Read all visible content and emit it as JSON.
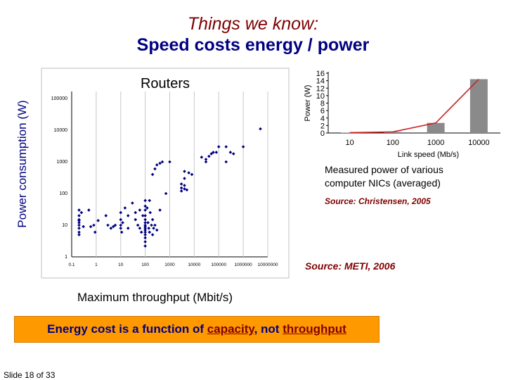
{
  "slide": {
    "title_line1": "Things we know:",
    "title_line2": "Speed costs energy / power",
    "y_axis_label": "Power consumption (W)",
    "x_axis_label": "Maximum throughput (Mbit/s)",
    "nic_note": "Measured power of various computer NICs (averaged)",
    "nic_source": "Source: Christensen, 2005",
    "router_source": "Source: METI, 2006",
    "banner_prefix": "Energy cost is a function of ",
    "banner_capacity": "capacity",
    "banner_middle": ", not ",
    "banner_throughput": "throughput",
    "slide_number": "Slide 18 of 33",
    "colors": {
      "title_italic": "#800000",
      "title_bold": "#000080",
      "banner_bg": "#ff9900",
      "marker": "#000080",
      "nic_line": "#cc2222",
      "nic_bar": "#8a8a8a"
    }
  },
  "chart_data": [
    {
      "type": "scatter",
      "title": "Routers",
      "x_scale": "log",
      "y_scale": "log",
      "x_ticks": [
        "0.1",
        "1",
        "10",
        "100",
        "1000",
        "10000",
        "100000",
        "1000000",
        "10000000"
      ],
      "y_ticks": [
        "1",
        "10",
        "100",
        "1000",
        "10000",
        "100000"
      ],
      "xlim": [
        0.1,
        10000000
      ],
      "ylim": [
        1,
        100000
      ],
      "xlabel": "Maximum throughput (Mbit/s)",
      "ylabel": "Power consumption (W)",
      "grid": "vertical",
      "points": [
        [
          0.2,
          30
        ],
        [
          0.2,
          20
        ],
        [
          0.2,
          15
        ],
        [
          0.2,
          12
        ],
        [
          0.2,
          10
        ],
        [
          0.2,
          8
        ],
        [
          0.2,
          6
        ],
        [
          0.2,
          5
        ],
        [
          0.2,
          14
        ],
        [
          0.25,
          25
        ],
        [
          0.3,
          9
        ],
        [
          0.5,
          30
        ],
        [
          0.6,
          9
        ],
        [
          0.8,
          10
        ],
        [
          0.9,
          6
        ],
        [
          1.2,
          14
        ],
        [
          2.5,
          20
        ],
        [
          3,
          10
        ],
        [
          4,
          8
        ],
        [
          5,
          9
        ],
        [
          6,
          10
        ],
        [
          10,
          25
        ],
        [
          10,
          15
        ],
        [
          10,
          10
        ],
        [
          10,
          8
        ],
        [
          11,
          6
        ],
        [
          12,
          12
        ],
        [
          15,
          35
        ],
        [
          20,
          20
        ],
        [
          20,
          8
        ],
        [
          30,
          50
        ],
        [
          40,
          25
        ],
        [
          40,
          15
        ],
        [
          50,
          10
        ],
        [
          60,
          30
        ],
        [
          60,
          8
        ],
        [
          70,
          6
        ],
        [
          80,
          20
        ],
        [
          100,
          60
        ],
        [
          100,
          40
        ],
        [
          100,
          30
        ],
        [
          100,
          20
        ],
        [
          100,
          15
        ],
        [
          100,
          12
        ],
        [
          100,
          10
        ],
        [
          100,
          9
        ],
        [
          100,
          8
        ],
        [
          100,
          7
        ],
        [
          100,
          6
        ],
        [
          100,
          5
        ],
        [
          100,
          4
        ],
        [
          100,
          3
        ],
        [
          100,
          2.2
        ],
        [
          120,
          35
        ],
        [
          130,
          12
        ],
        [
          140,
          8
        ],
        [
          150,
          60
        ],
        [
          150,
          6
        ],
        [
          160,
          25
        ],
        [
          180,
          10
        ],
        [
          200,
          15
        ],
        [
          200,
          5
        ],
        [
          220,
          8
        ],
        [
          250,
          10
        ],
        [
          300,
          7
        ],
        [
          200,
          400
        ],
        [
          250,
          600
        ],
        [
          300,
          800
        ],
        [
          400,
          900
        ],
        [
          500,
          1000
        ],
        [
          1000,
          1000
        ],
        [
          400,
          30
        ],
        [
          700,
          100
        ],
        [
          3000,
          150
        ],
        [
          3000,
          200
        ],
        [
          3000,
          120
        ],
        [
          4000,
          300
        ],
        [
          4000,
          180
        ],
        [
          4000,
          500
        ],
        [
          4000,
          140
        ],
        [
          5000,
          130
        ],
        [
          6000,
          450
        ],
        [
          8000,
          400
        ],
        [
          20000,
          1400
        ],
        [
          30000,
          1000
        ],
        [
          30000,
          1200
        ],
        [
          40000,
          1500
        ],
        [
          50000,
          1800
        ],
        [
          60000,
          2000
        ],
        [
          80000,
          2000
        ],
        [
          100000,
          3000
        ],
        [
          200000,
          3000
        ],
        [
          200000,
          1000
        ],
        [
          300000,
          2000
        ],
        [
          400000,
          1800
        ],
        [
          1000000,
          3000
        ],
        [
          5000000,
          11000
        ]
      ]
    },
    {
      "type": "bar",
      "xlabel": "Link speed (Mb/s)",
      "ylabel": "Power (W)",
      "categories": [
        "10",
        "100",
        "1000",
        "10000"
      ],
      "values": [
        0.1,
        0.3,
        2.7,
        14.4
      ],
      "ylim": [
        0,
        16
      ],
      "y_ticks": [
        "0",
        "2",
        "4",
        "6",
        "8",
        "10",
        "12",
        "14",
        "16"
      ],
      "line_values": [
        0.1,
        0.3,
        2.7,
        14.4
      ]
    }
  ]
}
